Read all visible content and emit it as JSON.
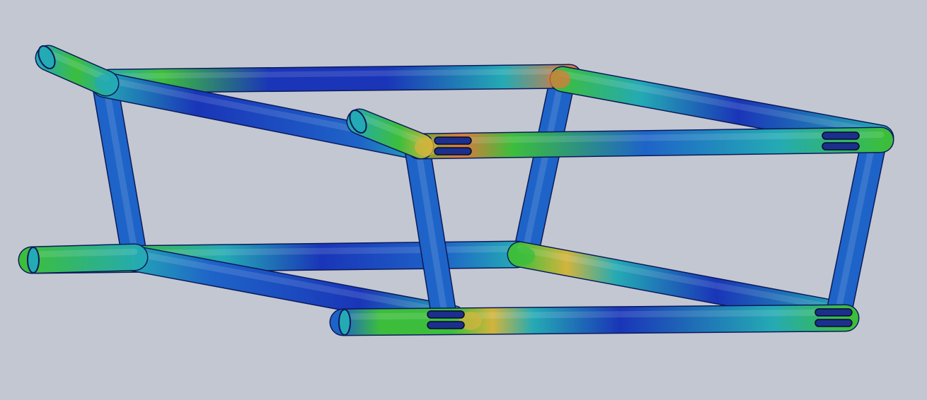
{
  "viewport": {
    "background_color": "#c3c7d2",
    "model_type": "tubular space frame",
    "display_mode": "stress plot"
  },
  "colors": {
    "stress_low": "#1a35b8",
    "stress_low_mid": "#1e64c8",
    "stress_mid": "#24aab4",
    "stress_mid_high": "#3cbe3c",
    "stress_high": "#d2b43c",
    "stress_peak": "#e0783c",
    "tube_edge": "#0b1a5a",
    "pin_body": "#1c2f8c",
    "pin_edge": "#050b2a"
  },
  "legend": {
    "visible": false
  }
}
